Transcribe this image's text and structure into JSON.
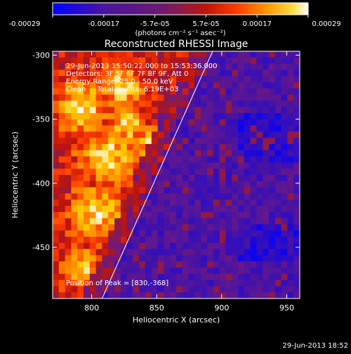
{
  "chart_data": {
    "type": "heatmap",
    "title": "Reconstructed RHESSI Image",
    "xlabel": "Heliocentric X (arcsec)",
    "ylabel": "Heliocentric Y (arcsec)",
    "xlim": [
      770,
      960
    ],
    "ylim": [
      -490,
      -297
    ],
    "xticks": [
      "800",
      "850",
      "900",
      "950"
    ],
    "xtick_values": [
      800,
      850,
      900,
      950
    ],
    "yticks": [
      "-300",
      "-350",
      "-400",
      "-450"
    ],
    "ytick_values": [
      -300,
      -350,
      -400,
      -450
    ],
    "colorbar": {
      "range": [
        -0.00029,
        0.00029
      ],
      "tick_labels": [
        "-0.00029",
        "-0.00017",
        "-5.7e-05",
        "5.7e-05",
        "0.00017",
        "0.00029"
      ],
      "unit_label": "(photons cm⁻² s⁻¹ asec⁻²)"
    },
    "annotations": [
      "29-Jun-2013 15:50:22.000 to 15:53:36.000",
      "Detectors: 3F 5F 6F 7F 8F 9F, Att 0",
      "Energy Range: 25.0 - 50.0 keV",
      "Clean     Total counts: 6.19E+03"
    ],
    "peak_label": "Position of Peak = [830,-368]",
    "limb_line": {
      "x": [
        808,
        893
      ],
      "y": [
        -490,
        -297
      ]
    },
    "grid": false
  },
  "timestamp": "29-Jun-2013 18:52",
  "colors": {
    "background": "#000000",
    "text": "#ffffff",
    "colormap": [
      "#0000ff",
      "#2a0cc8",
      "#4a14a0",
      "#6e1884",
      "#8a1a4a",
      "#c0140a",
      "#ff3c00",
      "#ff8c00",
      "#ffcc00",
      "#ffffff"
    ]
  }
}
